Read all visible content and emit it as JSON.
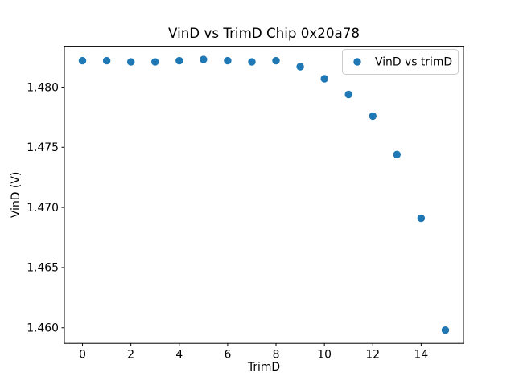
{
  "figure": {
    "background": "#ffffff",
    "axes_background": "#ffffff",
    "axis_color": "#000000"
  },
  "chart_data": {
    "type": "scatter",
    "title": "VinD vs TrimD Chip 0x20a78",
    "xlabel": "TrimD",
    "ylabel": "VinD (V)",
    "legend": {
      "label": "VinD vs trimD",
      "position": "upper right",
      "edge_color": "#cccccc",
      "face_color": "#ffffff"
    },
    "series": [
      {
        "name": "VinD vs trimD",
        "marker": "circle",
        "color": "#1f77b4",
        "x": [
          0,
          1,
          2,
          3,
          4,
          5,
          6,
          7,
          8,
          9,
          10,
          11,
          12,
          13,
          14,
          15
        ],
        "y": [
          1.4822,
          1.4822,
          1.4821,
          1.4821,
          1.4822,
          1.4823,
          1.4822,
          1.4821,
          1.4822,
          1.4817,
          1.4807,
          1.4794,
          1.4776,
          1.4744,
          1.4691,
          1.4598
        ]
      }
    ],
    "xlim": [
      -0.75,
      15.75
    ],
    "ylim": [
      1.4587,
      1.4834
    ],
    "xticks": [
      0,
      2,
      4,
      6,
      8,
      10,
      12,
      14
    ],
    "xtick_labels": [
      "0",
      "2",
      "4",
      "6",
      "8",
      "10",
      "12",
      "14"
    ],
    "yticks": [
      1.46,
      1.465,
      1.47,
      1.475,
      1.48
    ],
    "ytick_labels": [
      "1.460",
      "1.465",
      "1.470",
      "1.475",
      "1.480"
    ],
    "grid": false
  }
}
